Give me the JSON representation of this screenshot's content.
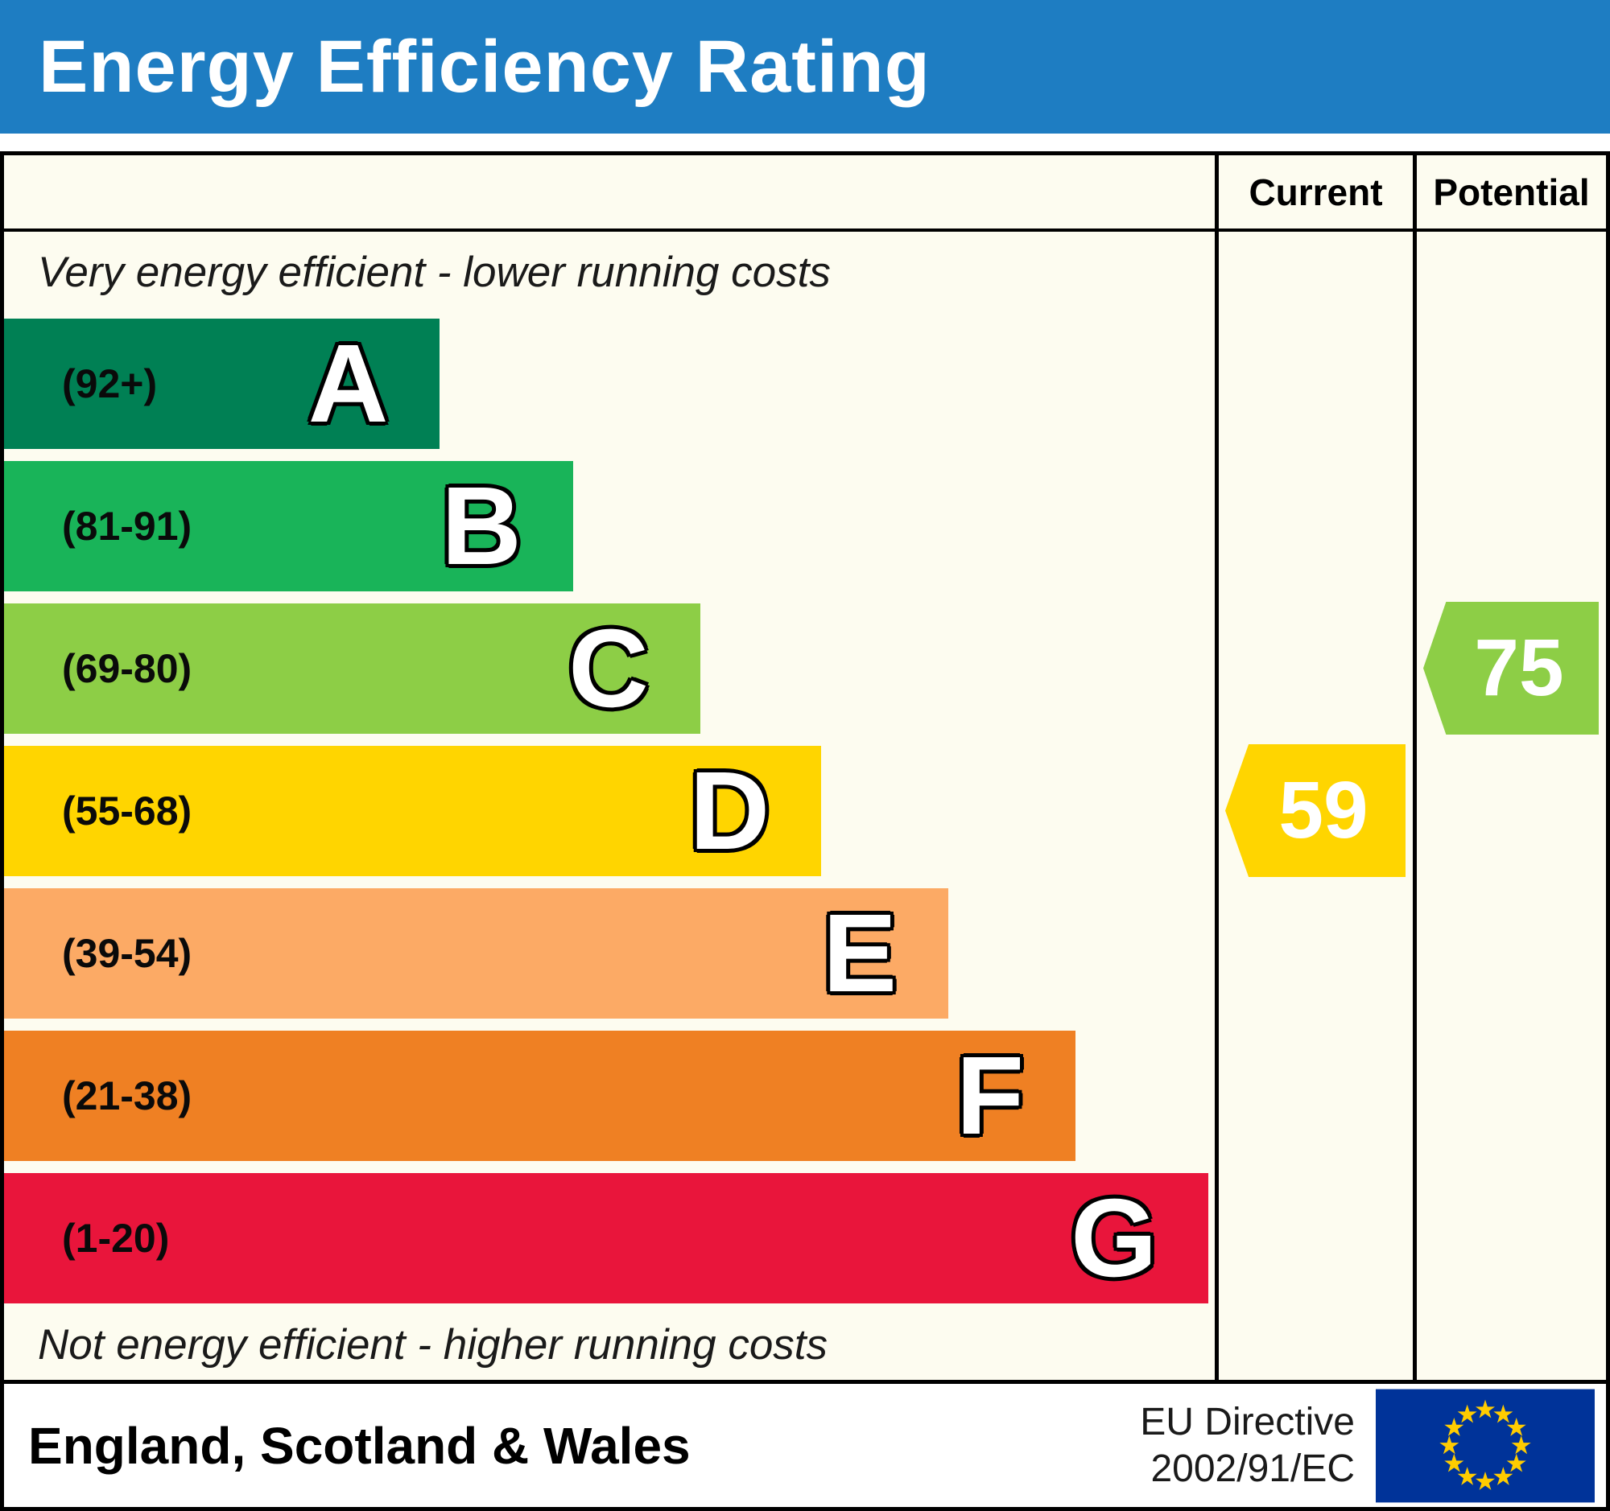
{
  "title": "Energy Efficiency Rating",
  "theme": {
    "header_bg": "#1e7dc2",
    "chart_bg": "#fdfcf0"
  },
  "columns": {
    "current": "Current",
    "potential": "Potential"
  },
  "notes": {
    "top": "Very energy efficient - lower running costs",
    "bottom": "Not energy efficient - higher running costs"
  },
  "bands": [
    {
      "letter": "A",
      "range": "(92+)",
      "color": "#008054",
      "width_pct": 36
    },
    {
      "letter": "B",
      "range": "(81-91)",
      "color": "#19b459",
      "width_pct": 47
    },
    {
      "letter": "C",
      "range": "(69-80)",
      "color": "#8dce46",
      "width_pct": 57.5
    },
    {
      "letter": "D",
      "range": "(55-68)",
      "color": "#ffd500",
      "width_pct": 67.5
    },
    {
      "letter": "E",
      "range": "(39-54)",
      "color": "#fcaa65",
      "width_pct": 78
    },
    {
      "letter": "F",
      "range": "(21-38)",
      "color": "#ef8023",
      "width_pct": 88.5
    },
    {
      "letter": "G",
      "range": "(1-20)",
      "color": "#e9153b",
      "width_pct": 99.5
    }
  ],
  "ratings": {
    "current": {
      "value": "59",
      "band": "D",
      "color": "#ffd500"
    },
    "potential": {
      "value": "75",
      "band": "C",
      "color": "#8dce46"
    }
  },
  "footer": {
    "region": "England, Scotland & Wales",
    "directive_line1": "EU Directive",
    "directive_line2": "2002/91/EC",
    "flag": {
      "background": "#003399",
      "star_color": "#ffcc00"
    }
  },
  "chart_data": {
    "type": "bar",
    "title": "Energy Efficiency Rating",
    "categories": [
      "A",
      "B",
      "C",
      "D",
      "E",
      "F",
      "G"
    ],
    "band_ranges": [
      "92+",
      "81-91",
      "69-80",
      "55-68",
      "39-54",
      "21-38",
      "1-20"
    ],
    "colors": [
      "#008054",
      "#19b459",
      "#8dce46",
      "#ffd500",
      "#fcaa65",
      "#ef8023",
      "#e9153b"
    ],
    "bar_width_pct": [
      36,
      47,
      57.5,
      67.5,
      78,
      88.5,
      99.5
    ],
    "series": [
      {
        "name": "Current",
        "value": 59,
        "band": "D"
      },
      {
        "name": "Potential",
        "value": 75,
        "band": "C"
      }
    ],
    "annotation_top": "Very energy efficient - lower running costs",
    "annotation_bottom": "Not energy efficient - higher running costs",
    "region": "England, Scotland & Wales",
    "directive": "EU Directive 2002/91/EC",
    "legend_position": "right-columns",
    "grid": false
  }
}
